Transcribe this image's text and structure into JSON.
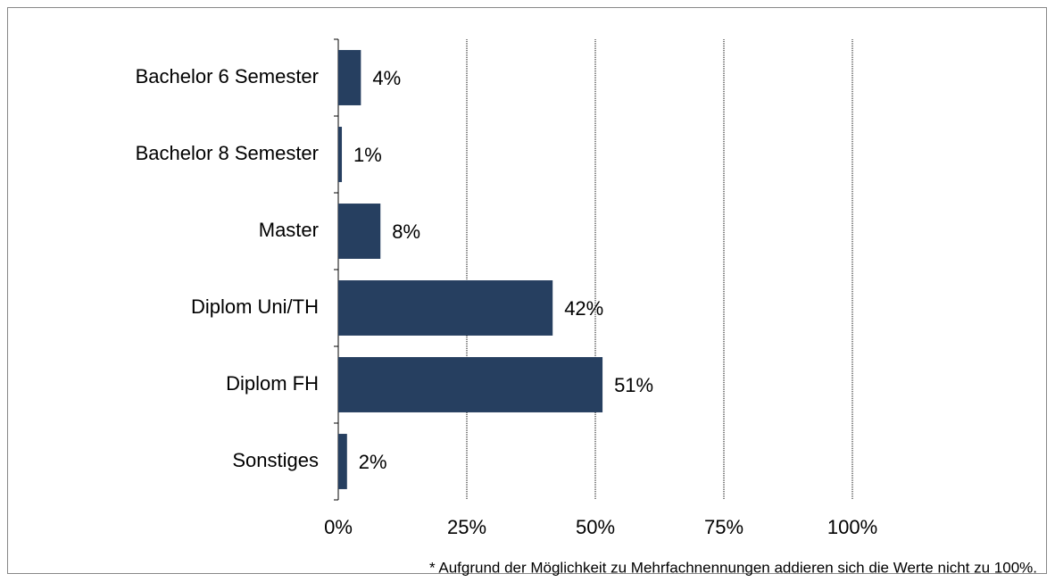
{
  "chart_data": {
    "type": "bar",
    "orientation": "horizontal",
    "categories": [
      "Bachelor 6 Semester",
      "Bachelor 8 Semester",
      "Master",
      "Diplom Uni/TH",
      "Diplom FH",
      "Sonstiges"
    ],
    "values": [
      4.4,
      0.7,
      8.2,
      41.7,
      51.4,
      1.7
    ],
    "value_labels": [
      "4%",
      "1%",
      "8%",
      "42%",
      "51%",
      "2%"
    ],
    "color": "#263f60",
    "xlim": [
      0,
      100
    ],
    "xticks": [
      {
        "value": 0,
        "label": "0%"
      },
      {
        "value": 25,
        "label": "25%"
      },
      {
        "value": 50,
        "label": "50%"
      },
      {
        "value": 75,
        "label": "75%"
      },
      {
        "value": 100,
        "label": "100%"
      }
    ],
    "grid": true,
    "footnote": "* Aufgrund der Möglichkeit zu Mehrfachnennungen addieren sich die Werte nicht zu 100%."
  }
}
